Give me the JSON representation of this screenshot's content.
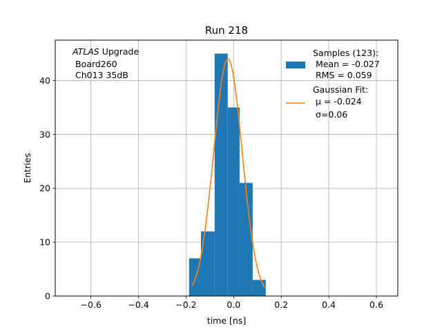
{
  "chart_data": {
    "type": "bar",
    "title": "Run 218",
    "xlabel": "time [ns]",
    "ylabel": "Entries",
    "xlim": [
      -0.75,
      0.69
    ],
    "ylim": [
      0,
      47.5
    ],
    "grid": true,
    "x_ticks": [
      -0.6,
      -0.4,
      -0.2,
      0.0,
      0.2,
      0.4,
      0.6
    ],
    "x_tick_labels": [
      "−0.6",
      "−0.4",
      "−0.2",
      "0.0",
      "0.2",
      "0.4",
      "0.6"
    ],
    "y_ticks": [
      0,
      10,
      20,
      30,
      40
    ],
    "y_tick_labels": [
      "0",
      "10",
      "20",
      "30",
      "40"
    ],
    "histogram": {
      "name": "Samples (123):",
      "color": "#1f77b4",
      "bins": [
        {
          "x0": -0.1875,
          "x1": -0.1375,
          "count": 7
        },
        {
          "x0": -0.1375,
          "x1": -0.08,
          "count": 12
        },
        {
          "x0": -0.08,
          "x1": -0.025,
          "count": 45
        },
        {
          "x0": -0.025,
          "x1": 0.025,
          "count": 35
        },
        {
          "x0": 0.025,
          "x1": 0.08,
          "count": 21
        },
        {
          "x0": 0.08,
          "x1": 0.135,
          "count": 3
        }
      ]
    },
    "fit": {
      "name": "Gaussian Fit:",
      "color": "#ff7f0e",
      "mu": -0.024,
      "sigma": 0.06,
      "amplitude": 44,
      "x_range": [
        -0.175,
        0.13
      ]
    },
    "legend": {
      "placement": "top-right",
      "entries": [
        {
          "kind": "patch",
          "lines": [
            "Samples (123):",
            " Mean = -0.027",
            " RMS = 0.059"
          ]
        },
        {
          "kind": "line",
          "lines": [
            "Gaussian Fit:",
            " μ = -0.024",
            " σ=0.06"
          ]
        }
      ]
    },
    "annotation": {
      "italic": "ATLAS",
      "rest": " Upgrade",
      "lines": [
        " Board260",
        " Ch013 35dB"
      ]
    }
  }
}
